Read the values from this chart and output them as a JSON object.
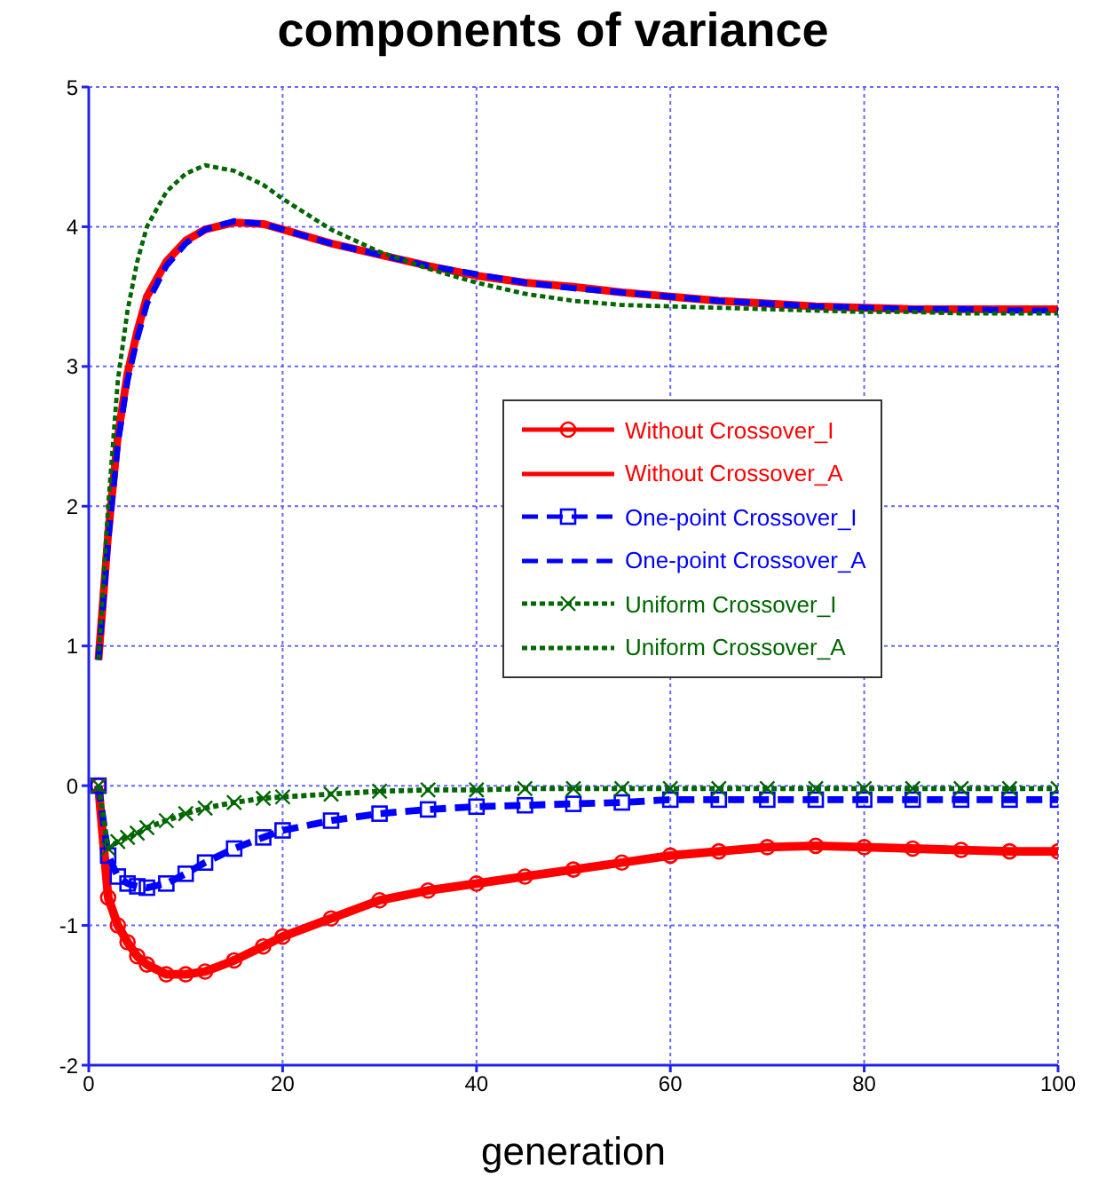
{
  "chart_data": {
    "type": "line",
    "title": "components of variance",
    "xlabel": "generation",
    "x": [
      1,
      2,
      3,
      4,
      5,
      6,
      8,
      10,
      12,
      15,
      18,
      20,
      25,
      30,
      35,
      40,
      45,
      50,
      55,
      60,
      65,
      70,
      75,
      80,
      85,
      90,
      95,
      100
    ],
    "xlim": [
      0,
      100
    ],
    "xticks": [
      0,
      20,
      40,
      60,
      80,
      100
    ],
    "ylim": [
      -2,
      5
    ],
    "yticks": [
      -2,
      -1,
      0,
      1,
      2,
      3,
      4,
      5
    ],
    "grid": true,
    "legend": "right",
    "series": [
      {
        "name": "Without Crossover_I",
        "color": "#ff0000",
        "marker": "circle",
        "line_style": "solid",
        "values": [
          0,
          -0.8,
          -1.0,
          -1.12,
          -1.22,
          -1.28,
          -1.35,
          -1.35,
          -1.33,
          -1.25,
          -1.15,
          -1.08,
          -0.95,
          -0.82,
          -0.75,
          -0.7,
          -0.65,
          -0.6,
          -0.55,
          -0.5,
          -0.47,
          -0.44,
          -0.43,
          -0.44,
          -0.45,
          -0.46,
          -0.47,
          -0.47
        ]
      },
      {
        "name": "Without Crossover_A",
        "color": "#ff0000",
        "marker": "none",
        "line_style": "solid",
        "values": [
          0.9,
          1.8,
          2.5,
          2.95,
          3.25,
          3.5,
          3.75,
          3.9,
          3.98,
          4.03,
          4.02,
          3.98,
          3.88,
          3.8,
          3.72,
          3.65,
          3.6,
          3.57,
          3.53,
          3.5,
          3.47,
          3.45,
          3.43,
          3.42,
          3.41,
          3.41,
          3.41,
          3.41
        ]
      },
      {
        "name": "One-point Crossover_I",
        "color": "#0000ff",
        "marker": "square",
        "line_style": "dashed",
        "values": [
          0,
          -0.5,
          -0.65,
          -0.7,
          -0.72,
          -0.73,
          -0.7,
          -0.63,
          -0.55,
          -0.45,
          -0.37,
          -0.32,
          -0.25,
          -0.2,
          -0.17,
          -0.15,
          -0.14,
          -0.13,
          -0.12,
          -0.1,
          -0.1,
          -0.1,
          -0.1,
          -0.1,
          -0.1,
          -0.1,
          -0.1,
          -0.1
        ]
      },
      {
        "name": "One-point Crossover_A",
        "color": "#0000ff",
        "marker": "none",
        "line_style": "dashed",
        "values": [
          0.9,
          1.75,
          2.45,
          2.9,
          3.2,
          3.45,
          3.72,
          3.88,
          3.98,
          4.04,
          4.02,
          3.98,
          3.88,
          3.8,
          3.72,
          3.66,
          3.6,
          3.56,
          3.53,
          3.5,
          3.47,
          3.45,
          3.43,
          3.42,
          3.41,
          3.41,
          3.4,
          3.4
        ]
      },
      {
        "name": "Uniform Crossover_I",
        "color": "#006600",
        "marker": "cross",
        "line_style": "dotted",
        "values": [
          0,
          -0.45,
          -0.4,
          -0.37,
          -0.34,
          -0.3,
          -0.25,
          -0.2,
          -0.16,
          -0.12,
          -0.09,
          -0.08,
          -0.06,
          -0.04,
          -0.03,
          -0.03,
          -0.02,
          -0.02,
          -0.02,
          -0.02,
          -0.02,
          -0.02,
          -0.02,
          -0.02,
          -0.02,
          -0.02,
          -0.02,
          -0.02
        ]
      },
      {
        "name": "Uniform Crossover_A",
        "color": "#006600",
        "marker": "none",
        "line_style": "dotted",
        "values": [
          0.9,
          2.0,
          2.9,
          3.4,
          3.75,
          4.0,
          4.25,
          4.38,
          4.44,
          4.4,
          4.3,
          4.2,
          3.98,
          3.82,
          3.7,
          3.6,
          3.52,
          3.47,
          3.44,
          3.43,
          3.42,
          3.41,
          3.4,
          3.39,
          3.39,
          3.38,
          3.38,
          3.38
        ]
      }
    ]
  }
}
